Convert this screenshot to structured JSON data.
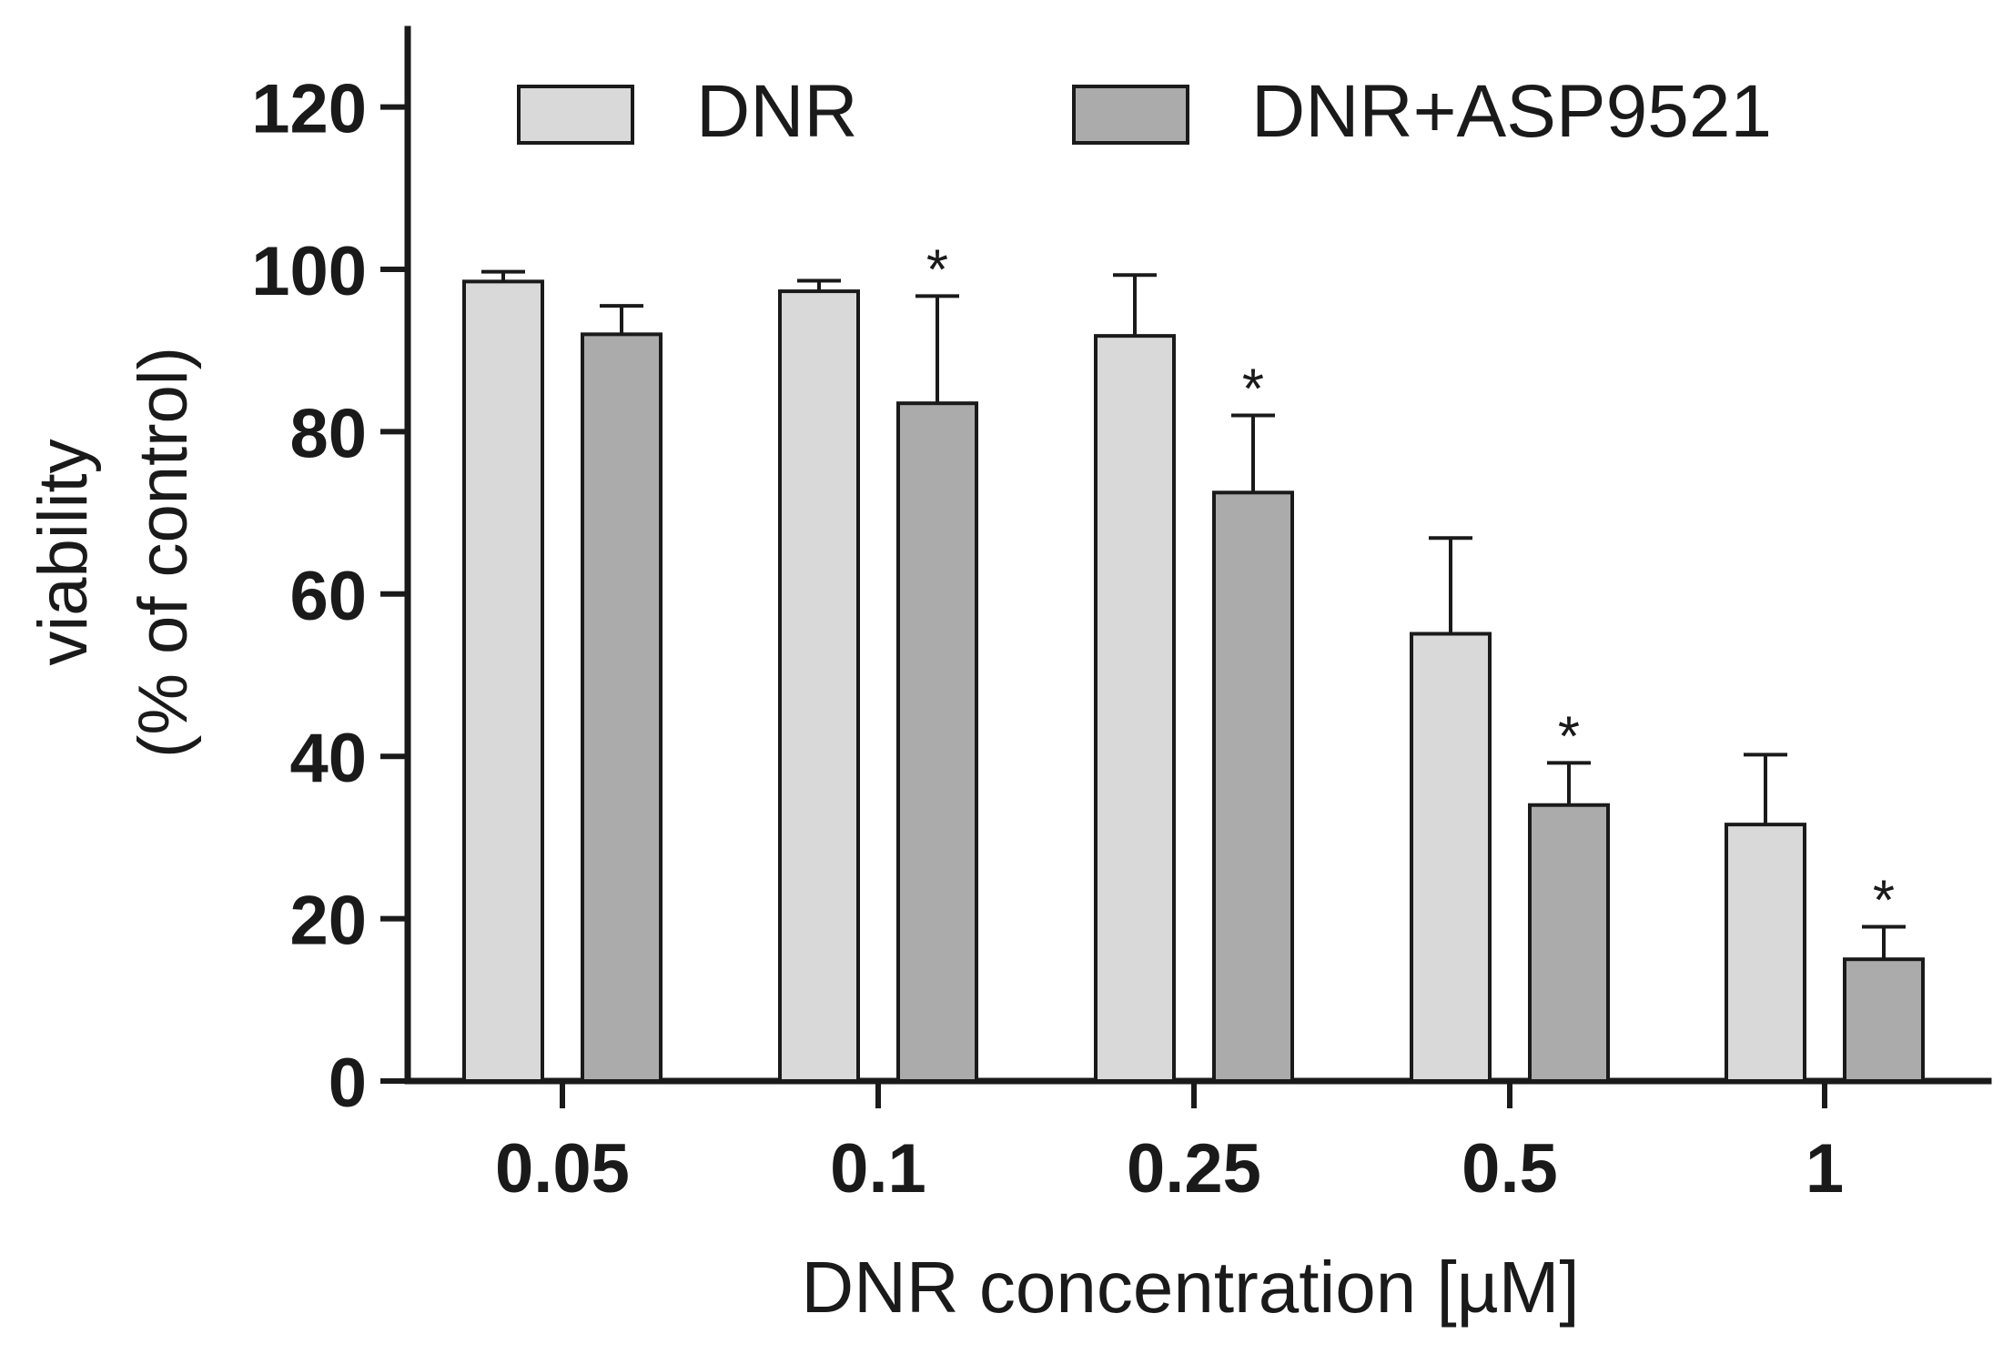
{
  "chart_data": {
    "type": "bar",
    "title": "",
    "xlabel": "DNR concentration [µM]",
    "ylabel_line1": "viability",
    "ylabel_line2": "(% of control)",
    "categories": [
      "0.05",
      "0.1",
      "0.25",
      "0.5",
      "1"
    ],
    "ylim": [
      0,
      130
    ],
    "yticks": [
      0,
      20,
      40,
      60,
      80,
      100,
      120
    ],
    "legend_position": "top",
    "series": [
      {
        "name": "DNR",
        "color": "#d9d9d9",
        "values": [
          98.5,
          97.3,
          91.8,
          55.1,
          31.6
        ],
        "errors": [
          1.2,
          1.3,
          7.5,
          11.8,
          8.6
        ],
        "significant": [
          false,
          false,
          false,
          false,
          false
        ]
      },
      {
        "name": "DNR+ASP9521",
        "color": "#ababab",
        "values": [
          92.0,
          83.5,
          72.5,
          34.0,
          15.0
        ],
        "errors": [
          3.5,
          13.2,
          9.5,
          5.2,
          4.0
        ],
        "significant": [
          false,
          true,
          true,
          true,
          true
        ]
      }
    ],
    "significance_marker": "*"
  }
}
